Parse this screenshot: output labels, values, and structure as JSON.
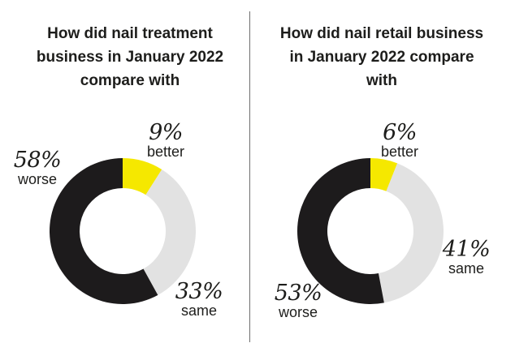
{
  "colors": {
    "better": "#f5e800",
    "same": "#e2e2e2",
    "worse": "#1d1b1c"
  },
  "chart_data": [
    {
      "type": "pie",
      "title": "How did nail treatment business in January 2022 compare with",
      "categories": [
        "better",
        "same",
        "worse"
      ],
      "values": [
        9,
        33,
        58
      ],
      "labels": [
        "9%",
        "33%",
        "58%"
      ]
    },
    {
      "type": "pie",
      "title": "How did nail retail business in January 2022 compare with",
      "categories": [
        "better",
        "same",
        "worse"
      ],
      "values": [
        6,
        41,
        53
      ],
      "labels": [
        "6%",
        "41%",
        "53%"
      ]
    }
  ]
}
